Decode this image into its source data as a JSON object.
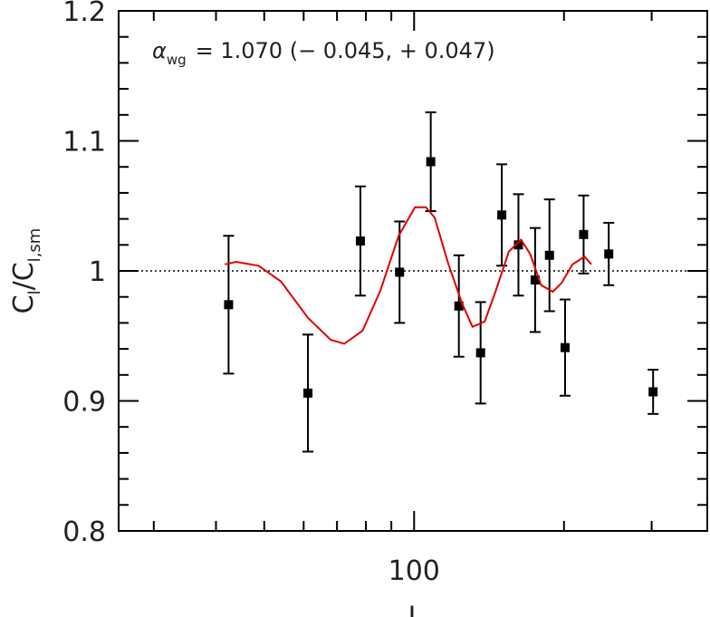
{
  "chart_data": {
    "type": "errorbar",
    "x_label": "l",
    "y_label": {
      "main": "C",
      "sub": "l",
      "slash": "/",
      "main2": "C",
      "sub2": "l,sm"
    },
    "annotation": {
      "symbol": "α",
      "subscript": "wg",
      "text": "= 1.070 (− 0.045, + 0.047)"
    },
    "x_log": true,
    "xlim": [
      25.5,
      388
    ],
    "ylim": [
      0.8,
      1.2
    ],
    "xticks": [
      100
    ],
    "xminor_ticks": [
      30,
      40,
      50,
      60,
      70,
      80,
      90,
      200,
      300
    ],
    "yticks": [
      0.8,
      0.9,
      1,
      1.1,
      1.2
    ],
    "yminor_ticks": [
      0.82,
      0.84,
      0.86,
      0.88,
      0.92,
      0.94,
      0.96,
      0.98,
      1.02,
      1.04,
      1.06,
      1.08,
      1.12,
      1.14,
      1.16,
      1.18
    ],
    "reference_line": 1,
    "series": [
      {
        "color": "#000000",
        "x": [
          42.4,
          61.2,
          78,
          93.5,
          108,
          123,
          136,
          150,
          162,
          175,
          187,
          201,
          219,
          246,
          302
        ],
        "values": [
          0.974,
          0.906,
          1.023,
          0.999,
          1.084,
          0.973,
          0.937,
          1.043,
          1.02,
          0.993,
          1.012,
          0.941,
          1.028,
          1.013,
          0.907
        ],
        "errors": [
          0.053,
          0.045,
          0.042,
          0.039,
          0.038,
          0.039,
          0.039,
          0.039,
          0.039,
          0.04,
          0.043,
          0.037,
          0.03,
          0.024,
          0.017
        ]
      },
      {
        "color": "#e00000",
        "style": "line",
        "x": [
          41.7,
          43.9,
          48.7,
          54,
          61.2,
          68,
          72.4,
          78.8,
          85.6,
          93.1,
          100.4,
          105.6,
          110,
          117,
          124.8,
          131,
          138.6,
          146,
          155,
          164,
          171,
          180,
          190,
          198,
          208,
          220,
          227
        ],
        "values": [
          1.005,
          1.007,
          1.004,
          0.992,
          0.964,
          0.947,
          0.944,
          0.954,
          0.985,
          1.027,
          1.049,
          1.049,
          1.041,
          1.006,
          0.975,
          0.957,
          0.961,
          0.985,
          1.015,
          1.024,
          1.013,
          0.989,
          0.984,
          0.991,
          1.005,
          1.011,
          1.005
        ]
      }
    ]
  }
}
